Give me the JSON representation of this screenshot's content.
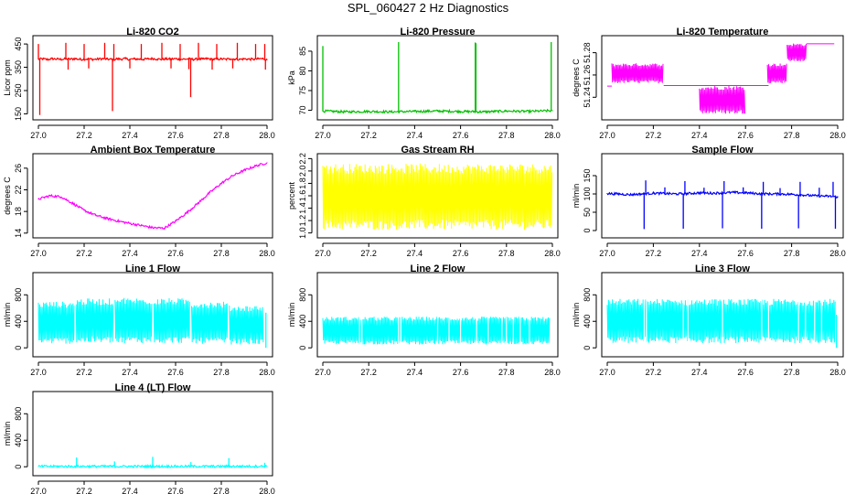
{
  "title": "SPL_060427  2 Hz Diagnostics",
  "chart_data": [
    {
      "type": "line",
      "title": "Li-820 CO2",
      "ylabel": "Licor ppm",
      "color": "#ff0000",
      "xlim": [
        27.0,
        28.0
      ],
      "ylim": [
        140,
        470
      ],
      "xticks": [
        "27.0",
        "27.2",
        "27.4",
        "27.6",
        "27.8",
        "28.0"
      ],
      "yticks": [
        [
          "150",
          150
        ],
        [
          "250",
          250
        ],
        [
          "350",
          350
        ],
        [
          "450",
          450
        ]
      ],
      "series": [
        {
          "name": "CO2",
          "x": [
            27.0,
            27.02,
            27.04,
            27.06,
            27.08,
            27.1,
            27.12,
            27.14,
            27.16,
            27.18,
            27.2,
            27.22,
            27.24,
            27.26,
            27.28,
            27.3,
            27.32,
            27.33,
            27.34,
            27.36,
            27.38,
            27.4,
            27.42,
            27.44,
            27.46,
            27.48,
            27.5,
            27.52,
            27.54,
            27.56,
            27.58,
            27.6,
            27.62,
            27.64,
            27.66,
            27.67,
            27.68,
            27.7,
            27.72,
            27.74,
            27.76,
            27.78,
            27.8,
            27.82,
            27.84,
            27.86,
            27.88,
            27.9,
            27.92,
            27.94,
            27.96,
            27.98,
            28.0
          ],
          "y": [
            385,
            386,
            383,
            387,
            385,
            384,
            386,
            385,
            387,
            384,
            385,
            386,
            384,
            385,
            387,
            385,
            384,
            383,
            386,
            385,
            387,
            384,
            386,
            385,
            384,
            386,
            387,
            385,
            384,
            386,
            385,
            387,
            384,
            385,
            386,
            385,
            384,
            386,
            385,
            387,
            384,
            385,
            386,
            384,
            387,
            385,
            384,
            386,
            385,
            384,
            386,
            387,
            383
          ],
          "spikes_up": [
            [
              27.0,
              450
            ],
            [
              27.12,
              455
            ],
            [
              27.2,
              450
            ],
            [
              27.29,
              455
            ],
            [
              27.33,
              450
            ],
            [
              27.45,
              450
            ],
            [
              27.54,
              455
            ],
            [
              27.62,
              450
            ],
            [
              27.7,
              455
            ],
            [
              27.78,
              450
            ],
            [
              27.87,
              455
            ],
            [
              27.95,
              450
            ],
            [
              27.99,
              450
            ]
          ],
          "spikes_down": [
            [
              27.006,
              145
            ],
            [
              27.13,
              340
            ],
            [
              27.22,
              345
            ],
            [
              27.324,
              162
            ],
            [
              27.4,
              345
            ],
            [
              27.58,
              345
            ],
            [
              27.658,
              342
            ],
            [
              27.666,
              222
            ],
            [
              27.76,
              340
            ],
            [
              27.85,
              345
            ],
            [
              27.993,
              340
            ]
          ]
        }
      ]
    },
    {
      "type": "line",
      "title": "Li-820 Pressure",
      "ylabel": "kPa",
      "color": "#00c000",
      "xlim": [
        27.0,
        28.0
      ],
      "ylim": [
        68.5,
        88
      ],
      "xticks": [
        "27.0",
        "27.2",
        "27.4",
        "27.6",
        "27.8",
        "28.0"
      ],
      "yticks": [
        [
          "70",
          70
        ],
        [
          "75",
          75
        ],
        [
          "80",
          80
        ],
        [
          "85",
          85
        ]
      ],
      "series": [
        {
          "name": "Pressure",
          "x": [
            27.0,
            27.1,
            27.2,
            27.3,
            27.4,
            27.5,
            27.6,
            27.7,
            27.8,
            27.9,
            28.0
          ],
          "y": [
            69.8,
            69.6,
            69.7,
            69.6,
            69.7,
            69.8,
            69.7,
            69.6,
            69.8,
            69.7,
            69.9
          ],
          "spikes_up": [
            [
              27.0,
              86.3
            ],
            [
              27.33,
              87.3
            ],
            [
              27.664,
              87.2
            ],
            [
              27.667,
              87.0
            ],
            [
              27.995,
              87.3
            ]
          ]
        }
      ]
    },
    {
      "type": "line",
      "title": "Li-820 Temperature",
      "ylabel": "degrees C",
      "color": "#ff00ff",
      "xlim": [
        27.0,
        28.0
      ],
      "ylim": [
        51.223,
        51.292
      ],
      "xticks": [
        "27.0",
        "27.2",
        "27.4",
        "27.6",
        "27.8",
        "28.0"
      ],
      "yticks": [
        [
          "51.24",
          51.24
        ],
        [
          "51.26",
          51.26
        ],
        [
          "51.28",
          51.28
        ]
      ],
      "series": [
        {
          "name": "Temperature",
          "bands": [
            [
              27.0,
              27.02,
              51.25,
              51.25
            ],
            [
              27.02,
              27.245,
              51.2525,
              51.2705
            ],
            [
              27.245,
              27.7,
              51.2505,
              51.2505
            ],
            [
              27.4,
              27.6,
              51.225,
              51.2505
            ],
            [
              27.695,
              27.78,
              51.2525,
              51.2705
            ],
            [
              27.78,
              27.865,
              51.272,
              51.2885
            ],
            [
              27.865,
              27.985,
              51.288,
              51.288
            ]
          ]
        }
      ]
    },
    {
      "type": "line",
      "title": "Ambient Box Temperature",
      "ylabel": "degrees C",
      "color": "#ff00ff",
      "xlim": [
        27.0,
        28.0
      ],
      "ylim": [
        13.8,
        28.0
      ],
      "xticks": [
        "27.0",
        "27.2",
        "27.4",
        "27.6",
        "27.8",
        "28.0"
      ],
      "yticks": [
        [
          "14",
          14
        ],
        [
          "18",
          18
        ],
        [
          "22",
          22
        ],
        [
          "26",
          26
        ]
      ],
      "series": [
        {
          "name": "Box Temperature",
          "x": [
            27.0,
            27.05,
            27.1,
            27.15,
            27.2,
            27.25,
            27.3,
            27.35,
            27.4,
            27.45,
            27.5,
            27.55,
            27.6,
            27.65,
            27.7,
            27.75,
            27.8,
            27.85,
            27.9,
            27.95,
            28.0
          ],
          "y": [
            20.3,
            20.9,
            20.7,
            19.5,
            18.2,
            17.3,
            16.7,
            16.2,
            15.8,
            15.4,
            15.0,
            14.9,
            16.2,
            17.8,
            19.6,
            21.5,
            23.2,
            24.6,
            25.6,
            26.4,
            27.0
          ]
        }
      ]
    },
    {
      "type": "line",
      "title": "Gas Stream RH",
      "ylabel": "percent",
      "color": "#ffff00",
      "xlim": [
        27.0,
        28.0
      ],
      "ylim": [
        0.98,
        2.22
      ],
      "xticks": [
        "27.0",
        "27.2",
        "27.4",
        "27.6",
        "27.8",
        "28.0"
      ],
      "yticks": [
        [
          "1.0",
          1.0
        ],
        [
          "1.2",
          1.2
        ],
        [
          "1.4",
          1.4
        ],
        [
          "1.6",
          1.6
        ],
        [
          "1.8",
          1.8
        ],
        [
          "2.0",
          2.0
        ],
        [
          "2.2",
          2.2
        ]
      ],
      "series": [
        {
          "name": "RH",
          "bands": [
            [
              27.0,
              28.0,
              1.05,
              2.12
            ]
          ]
        }
      ]
    },
    {
      "type": "line",
      "title": "Sample Flow",
      "ylabel": "ml/min",
      "color": "#0000ff",
      "xlim": [
        27.0,
        28.0
      ],
      "ylim": [
        -10,
        200
      ],
      "xticks": [
        "27.0",
        "27.2",
        "27.4",
        "27.6",
        "27.8",
        "28.0"
      ],
      "yticks": [
        [
          "0",
          0
        ],
        [
          "50",
          50
        ],
        [
          "100",
          100
        ],
        [
          "150",
          150
        ]
      ],
      "series": [
        {
          "name": "Sample Flow",
          "x": [
            27.0,
            27.05,
            27.1,
            27.15,
            27.2,
            27.25,
            27.3,
            27.35,
            27.4,
            27.45,
            27.5,
            27.55,
            27.6,
            27.65,
            27.7,
            27.75,
            27.8,
            27.85,
            27.9,
            27.95,
            28.0
          ],
          "y": [
            101,
            100,
            98,
            100,
            102,
            101,
            100,
            101,
            103,
            102,
            103,
            104,
            103,
            101,
            100,
            100,
            99,
            97,
            95,
            94,
            92
          ],
          "spikes_down": [
            [
              27.16,
              4
            ],
            [
              27.33,
              5
            ],
            [
              27.5,
              6
            ],
            [
              27.67,
              5
            ],
            [
              27.83,
              6
            ],
            [
              27.99,
              5
            ]
          ],
          "spikes_up": [
            [
              27.167,
              137
            ],
            [
              27.337,
              135
            ],
            [
              27.507,
              135
            ],
            [
              27.677,
              133
            ],
            [
              27.837,
              133
            ],
            [
              27.98,
              133
            ],
            [
              27.25,
              118
            ],
            [
              27.42,
              117
            ],
            [
              27.59,
              118
            ],
            [
              27.75,
              116
            ],
            [
              27.92,
              117
            ]
          ]
        }
      ]
    },
    {
      "type": "line",
      "title": "Line 1 Flow",
      "ylabel": "ml/min",
      "color": "#00ffff",
      "xlim": [
        27.0,
        28.0
      ],
      "ylim": [
        -80,
        1080
      ],
      "xticks": [
        "27.0",
        "27.2",
        "27.4",
        "27.6",
        "27.8",
        "28.0"
      ],
      "yticks": [
        [
          "0",
          0
        ],
        [
          "400",
          400
        ],
        [
          "800",
          800
        ]
      ],
      "series": [
        {
          "name": "Line 1",
          "bands": [
            [
              27.0,
              27.16,
              60,
              700
            ],
            [
              27.165,
              27.33,
              70,
              745
            ],
            [
              27.335,
              27.5,
              70,
              755
            ],
            [
              27.505,
              27.665,
              70,
              750
            ],
            [
              27.67,
              27.83,
              60,
              700
            ],
            [
              27.835,
              27.985,
              50,
              640
            ]
          ],
          "gaps": [
            27.16,
            27.33,
            27.5,
            27.665,
            27.83
          ],
          "spikes_up": [
            [
              27.995,
              530
            ]
          ]
        }
      ]
    },
    {
      "type": "line",
      "title": "Line 2 Flow",
      "ylabel": "ml/min",
      "color": "#00ffff",
      "xlim": [
        27.0,
        28.0
      ],
      "ylim": [
        -80,
        1080
      ],
      "xticks": [
        "27.0",
        "27.2",
        "27.4",
        "27.6",
        "27.8",
        "28.0"
      ],
      "yticks": [
        [
          "0",
          0
        ],
        [
          "400",
          400
        ],
        [
          "800",
          800
        ]
      ],
      "series": [
        {
          "name": "Line 2",
          "bands": [
            [
              27.0,
              27.99,
              50,
              470
            ]
          ],
          "gaps": [
            27.16,
            27.17,
            27.33,
            27.34,
            27.5,
            27.55,
            27.6,
            27.67,
            27.72,
            27.78,
            27.8,
            27.83,
            27.86,
            27.9
          ]
        }
      ]
    },
    {
      "type": "line",
      "title": "Line 3 Flow",
      "ylabel": "ml/min",
      "color": "#00ffff",
      "xlim": [
        27.0,
        28.0
      ],
      "ylim": [
        -80,
        1080
      ],
      "xticks": [
        "27.0",
        "27.2",
        "27.4",
        "27.6",
        "27.8",
        "28.0"
      ],
      "yticks": [
        [
          "0",
          0
        ],
        [
          "400",
          400
        ],
        [
          "800",
          800
        ]
      ],
      "series": [
        {
          "name": "Line 3",
          "bands": [
            [
              27.0,
              27.99,
              70,
              740
            ]
          ],
          "gaps": [
            27.16,
            27.17,
            27.33,
            27.35,
            27.5,
            27.67,
            27.7,
            27.83,
            27.86,
            27.9,
            27.93
          ],
          "spikes_up": [
            [
              27.995,
              500
            ]
          ]
        }
      ]
    },
    {
      "type": "line",
      "title": "Line 4 (LT) Flow",
      "ylabel": "ml/min",
      "color": "#00ffff",
      "xlim": [
        27.0,
        28.0
      ],
      "ylim": [
        -80,
        1080
      ],
      "xticks": [
        "27.0",
        "27.2",
        "27.4",
        "27.6",
        "27.8",
        "28.0"
      ],
      "yticks": [
        [
          "0",
          0
        ],
        [
          "400",
          400
        ],
        [
          "800",
          800
        ]
      ],
      "series": [
        {
          "name": "Line 4",
          "x": [
            27.0,
            27.2,
            27.4,
            27.6,
            27.8,
            28.0
          ],
          "y": [
            5,
            6,
            5,
            6,
            5,
            7
          ],
          "spikes_up": [
            [
              27.167,
              140
            ],
            [
              27.333,
              80
            ],
            [
              27.5,
              150
            ],
            [
              27.667,
              70
            ],
            [
              27.833,
              130
            ],
            [
              27.99,
              60
            ]
          ]
        }
      ]
    }
  ]
}
